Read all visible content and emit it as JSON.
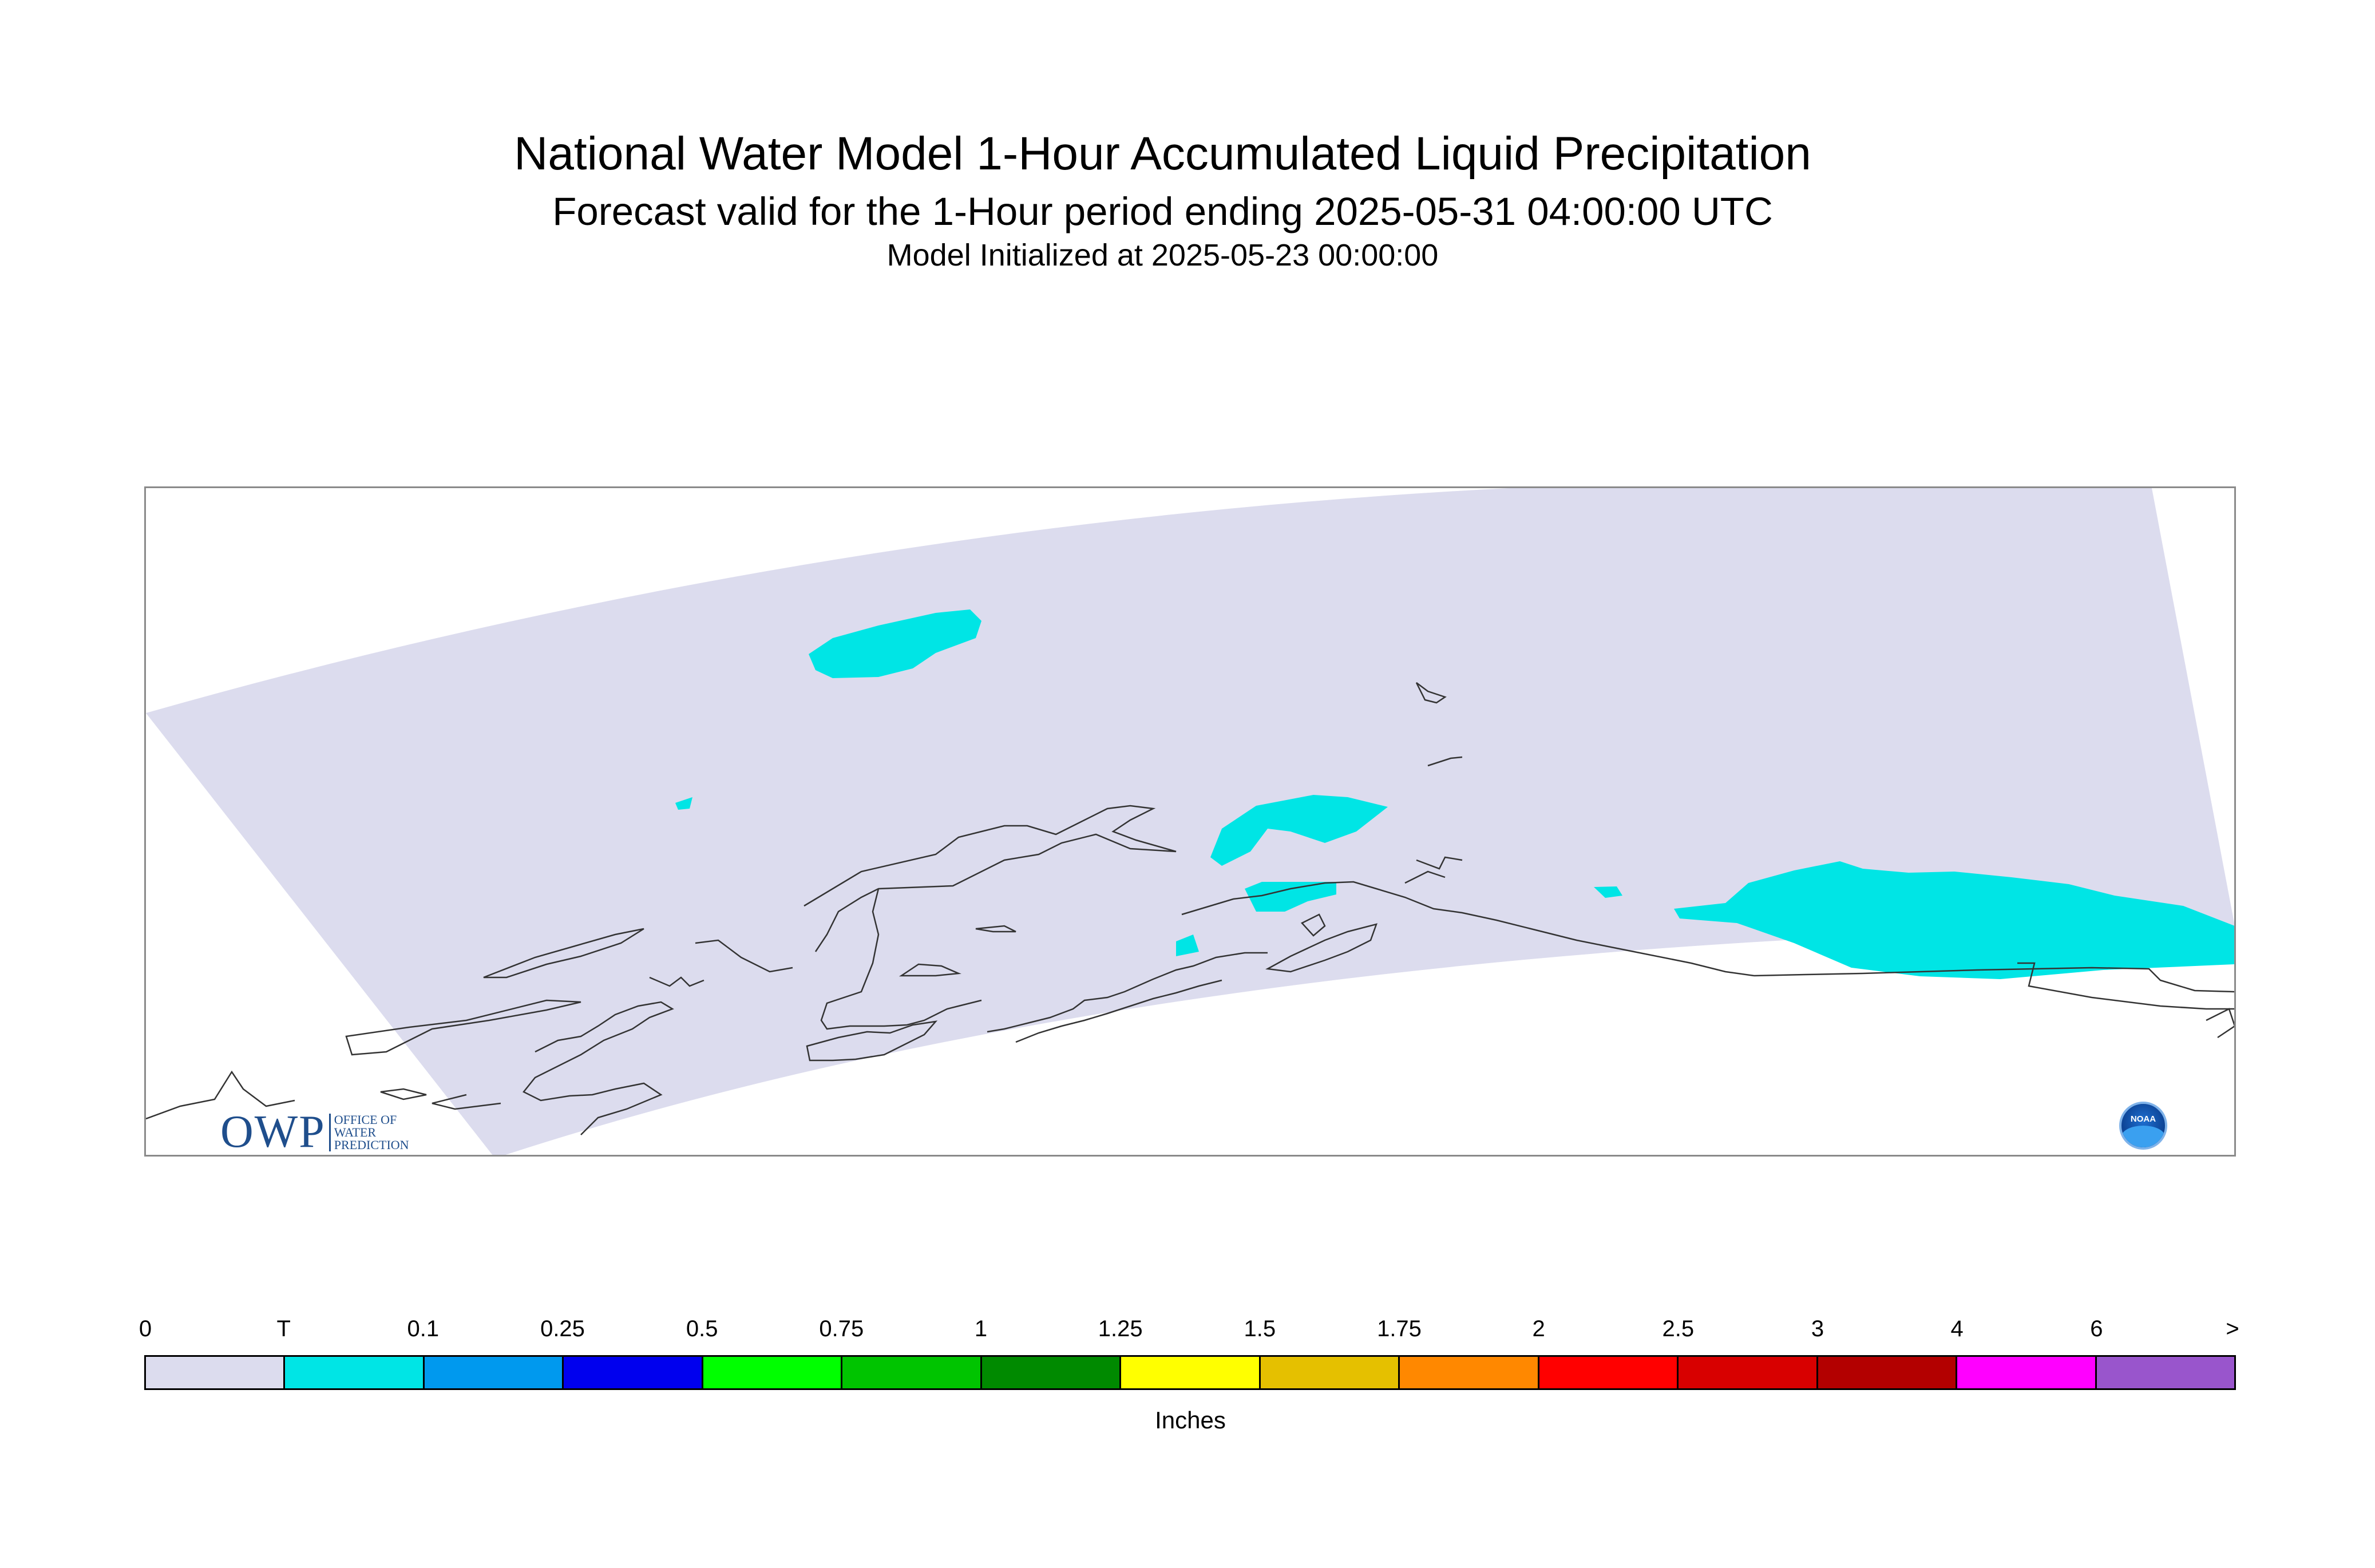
{
  "title": {
    "main": "National Water Model 1-Hour Accumulated Liquid Precipitation",
    "subtitle": "Forecast valid for the 1-Hour period ending 2025-05-31 04:00:00 UTC",
    "init": "Model Initialized at 2025-05-23 00:00:00"
  },
  "logos": {
    "owp": {
      "text": "OWP",
      "lines": [
        "OFFICE OF",
        "WATER",
        "PREDICTION"
      ]
    },
    "noaa": {
      "text": "NOAA"
    }
  },
  "map": {
    "domain_color": "#dcdcee",
    "coastline_color": "#333333",
    "precip_color": "#00e5e5"
  },
  "legend": {
    "units": "Inches",
    "labels": [
      "0",
      "T",
      "0.1",
      "0.25",
      "0.5",
      "0.75",
      "1",
      "1.25",
      "1.5",
      "1.75",
      "2",
      "2.5",
      "3",
      "4",
      "6",
      ">"
    ],
    "colors": [
      "#dcdcee",
      "#00e5e5",
      "#0099ee",
      "#0000ee",
      "#00ff00",
      "#00c400",
      "#008a00",
      "#ffff00",
      "#e5c000",
      "#ff8800",
      "#ff0000",
      "#d80000",
      "#b30000",
      "#ff00ff",
      "#9955cc"
    ]
  }
}
